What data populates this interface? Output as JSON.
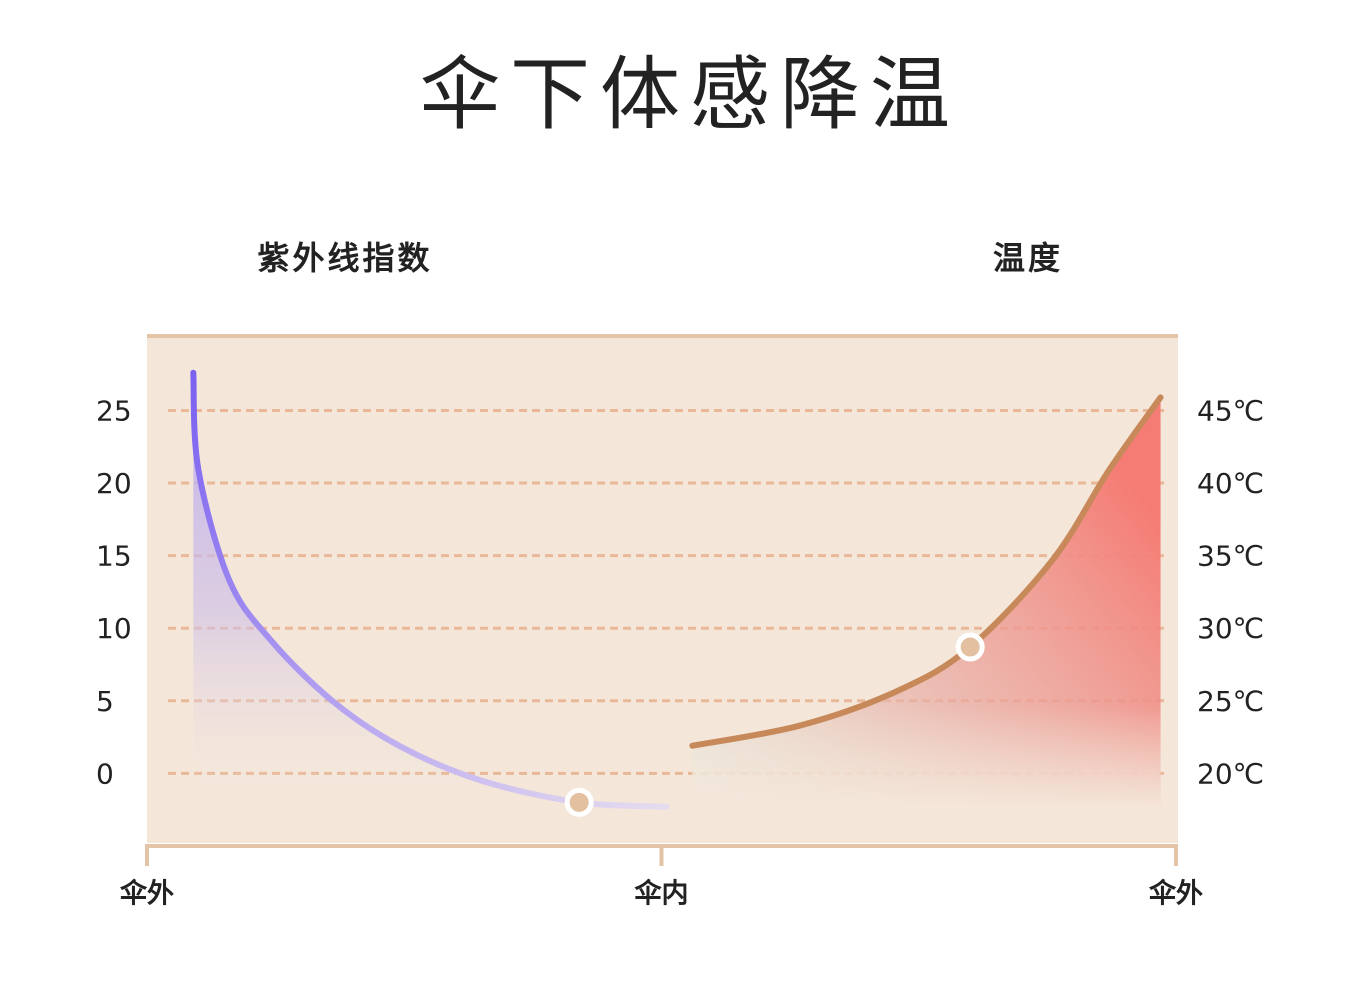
{
  "chart_data": {
    "type": "line",
    "title": "伞下体感降温",
    "ylabel": "紫外线指数",
    "y2label": "温度",
    "xlim": [
      0,
      2
    ],
    "xticks": [
      {
        "value": 0,
        "label": "伞外"
      },
      {
        "value": 1,
        "label": "伞内"
      },
      {
        "value": 2,
        "label": "伞外"
      }
    ],
    "ylim": [
      -4.8,
      30.2
    ],
    "yticks": [
      0,
      5,
      10,
      15,
      20,
      25
    ],
    "y2lim": [
      15.2,
      50.2
    ],
    "y2ticks": [
      {
        "value": 20,
        "label": "20℃"
      },
      {
        "value": 25,
        "label": "25℃"
      },
      {
        "value": 30,
        "label": "30℃"
      },
      {
        "value": 35,
        "label": "35℃"
      },
      {
        "value": 40,
        "label": "40℃"
      },
      {
        "value": 45,
        "label": "45℃"
      }
    ],
    "grid": true,
    "series": [
      {
        "color": "#7b61f0",
        "x": [
          0.09,
          0.1,
          0.16,
          0.24,
          0.36,
          0.49,
          0.65,
          0.84,
          1.01
        ],
        "values": [
          27.6,
          20.9,
          13.3,
          9.2,
          5.0,
          1.9,
          -0.5,
          -2.0,
          -2.3
        ],
        "highlight": 7
      },
      {
        "color": "#c8895a",
        "axis": "y2",
        "x": [
          1.06,
          1.27,
          1.46,
          1.6,
          1.76,
          1.87,
          1.97
        ],
        "values": [
          21.9,
          23.3,
          25.7,
          28.7,
          34.7,
          40.9,
          45.9
        ],
        "highlight": 3
      }
    ]
  }
}
